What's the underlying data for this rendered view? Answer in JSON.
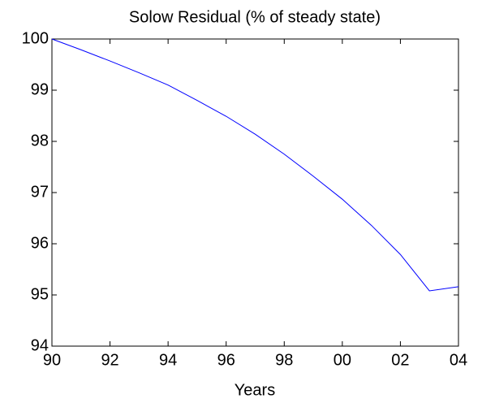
{
  "chart_data": {
    "type": "line",
    "title": "Solow Residual (% of steady state)",
    "x_label": "Years",
    "x": [
      90,
      91,
      92,
      93,
      94,
      95,
      96,
      97,
      98,
      99,
      100,
      101,
      102,
      103,
      104
    ],
    "series": [
      {
        "color": "#0000ff",
        "values": [
          100,
          99.79,
          99.57,
          99.34,
          99.1,
          98.8,
          98.49,
          98.14,
          97.75,
          97.32,
          96.87,
          96.36,
          95.79,
          95.08,
          95.16
        ]
      }
    ],
    "xlim": [
      90,
      104
    ],
    "xticks": [
      90,
      92,
      94,
      96,
      98,
      {
        "value": 100,
        "label": "00"
      },
      {
        "value": 102,
        "label": "02"
      },
      {
        "value": 104,
        "label": "04"
      }
    ],
    "ylim": [
      94,
      100
    ],
    "yticks": [
      94,
      95,
      96,
      97,
      98,
      99,
      100
    ],
    "grid": false
  }
}
